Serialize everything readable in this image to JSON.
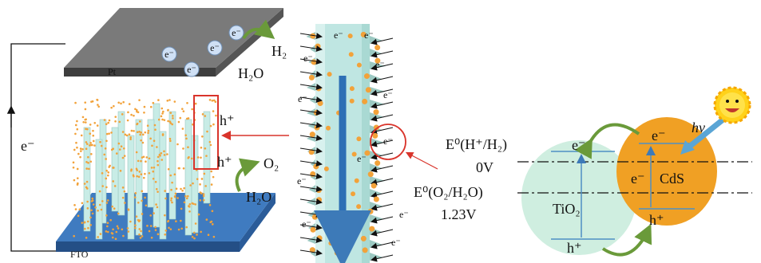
{
  "pt_electrode": {
    "label": "Pt",
    "electrons": [
      "e⁻",
      "e⁻",
      "e⁻",
      "e⁻"
    ],
    "product": "H₂",
    "reactant": "H₂O"
  },
  "circuit": {
    "electron": "e⁻"
  },
  "fto_electrode": {
    "label": "FTO",
    "hole_top": "h⁺",
    "hole_bottom": "h⁺",
    "product": "O₂",
    "reactant": "H₂O"
  },
  "nanorod": {
    "electrons": [
      "e⁻",
      "e⁻",
      "e⁻",
      "e⁻",
      "e⁻",
      "e⁻",
      "e⁻",
      "e⁻",
      "e⁻",
      "e⁻",
      "e⁻",
      "e⁻"
    ]
  },
  "band_diagram": {
    "reduction_potential": "E⁰(H⁺/H₂)",
    "reduction_value": "0V",
    "oxidation_potential": "E⁰(O₂/H₂O)",
    "oxidation_value": "1.23V",
    "tio2": {
      "label": "TiO₂",
      "electron": "e⁻",
      "hole": "h⁺"
    },
    "cds": {
      "label": "CdS",
      "electron_band": "e⁻",
      "electron": "e⁻",
      "hole": "h⁺"
    },
    "light": "hν"
  }
}
